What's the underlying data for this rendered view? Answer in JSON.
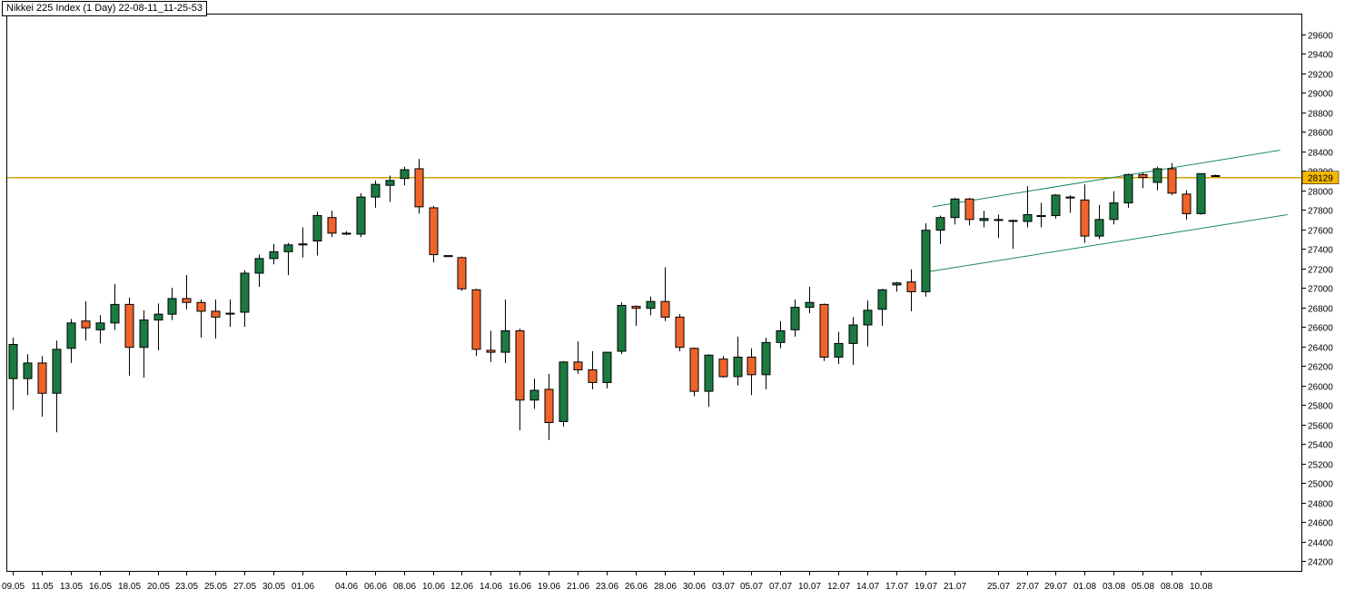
{
  "window": {
    "title": "Nikkei 225 Index (1 Day) 22-08-11_11-25-53"
  },
  "colors": {
    "up": "#1a7a40",
    "down": "#f0642a",
    "outline": "#000000",
    "horizontal_line": "#d4a000",
    "channel": "#1a8a5a",
    "price_label_bg": "#f5b800"
  },
  "chart_data": {
    "type": "candlestick",
    "title": "Nikkei 225 Index (1 Day)",
    "ylim": [
      24100,
      29800
    ],
    "y_ticks": [
      24200,
      24400,
      24600,
      24800,
      25000,
      25200,
      25400,
      25600,
      25800,
      26000,
      26200,
      26400,
      26600,
      26800,
      27000,
      27200,
      27400,
      27600,
      27800,
      28000,
      28200,
      28400,
      28600,
      28800,
      29000,
      29200,
      29400,
      29600
    ],
    "x_ticks": [
      {
        "i": 0,
        "label": "09.05"
      },
      {
        "i": 2,
        "label": "11.05"
      },
      {
        "i": 4,
        "label": "13.05"
      },
      {
        "i": 6,
        "label": "16.05"
      },
      {
        "i": 8,
        "label": "18.05"
      },
      {
        "i": 10,
        "label": "20.05"
      },
      {
        "i": 12,
        "label": "23.05"
      },
      {
        "i": 14,
        "label": "25.05"
      },
      {
        "i": 16,
        "label": "27.05"
      },
      {
        "i": 18,
        "label": "30.05"
      },
      {
        "i": 20,
        "label": "01.06"
      },
      {
        "i": 23,
        "label": "04.06"
      },
      {
        "i": 25,
        "label": "06.06"
      },
      {
        "i": 27,
        "label": "08.06"
      },
      {
        "i": 29,
        "label": "10.06"
      },
      {
        "i": 31,
        "label": "12.06"
      },
      {
        "i": 33,
        "label": "14.06"
      },
      {
        "i": 35,
        "label": "16.06"
      },
      {
        "i": 37,
        "label": "19.06"
      },
      {
        "i": 39,
        "label": "21.06"
      },
      {
        "i": 41,
        "label": "23.06"
      },
      {
        "i": 43,
        "label": "26.06"
      },
      {
        "i": 45,
        "label": "28.06"
      },
      {
        "i": 47,
        "label": "30.06"
      },
      {
        "i": 49,
        "label": "03.07"
      },
      {
        "i": 51,
        "label": "05.07"
      },
      {
        "i": 53,
        "label": "07.07"
      },
      {
        "i": 55,
        "label": "10.07"
      },
      {
        "i": 57,
        "label": "12.07"
      },
      {
        "i": 59,
        "label": "14.07"
      },
      {
        "i": 61,
        "label": "17.07"
      },
      {
        "i": 63,
        "label": "19.07"
      },
      {
        "i": 65,
        "label": "21.07"
      },
      {
        "i": 68,
        "label": "25.07"
      },
      {
        "i": 70,
        "label": "27.07"
      },
      {
        "i": 72,
        "label": "29.07"
      },
      {
        "i": 74,
        "label": "01.08"
      },
      {
        "i": 76,
        "label": "03.08"
      },
      {
        "i": 78,
        "label": "05.08"
      },
      {
        "i": 80,
        "label": "08.08"
      },
      {
        "i": 82,
        "label": "10.08"
      }
    ],
    "candles": [
      {
        "o": 26070,
        "h": 26490,
        "l": 25750,
        "c": 26420
      },
      {
        "o": 26070,
        "h": 26320,
        "l": 25900,
        "c": 26230
      },
      {
        "o": 26230,
        "h": 26300,
        "l": 25680,
        "c": 25920
      },
      {
        "o": 25920,
        "h": 26460,
        "l": 25520,
        "c": 26370
      },
      {
        "o": 26380,
        "h": 26680,
        "l": 26230,
        "c": 26640
      },
      {
        "o": 26660,
        "h": 26860,
        "l": 26460,
        "c": 26590
      },
      {
        "o": 26570,
        "h": 26720,
        "l": 26430,
        "c": 26640
      },
      {
        "o": 26640,
        "h": 27040,
        "l": 26570,
        "c": 26830
      },
      {
        "o": 26830,
        "h": 26900,
        "l": 26100,
        "c": 26390
      },
      {
        "o": 26390,
        "h": 26770,
        "l": 26080,
        "c": 26670
      },
      {
        "o": 26670,
        "h": 26840,
        "l": 26360,
        "c": 26730
      },
      {
        "o": 26730,
        "h": 27000,
        "l": 26670,
        "c": 26890
      },
      {
        "o": 26890,
        "h": 27130,
        "l": 26780,
        "c": 26850
      },
      {
        "o": 26850,
        "h": 26880,
        "l": 26490,
        "c": 26760
      },
      {
        "o": 26760,
        "h": 26880,
        "l": 26480,
        "c": 26700
      },
      {
        "o": 26740,
        "h": 26880,
        "l": 26600,
        "c": 26740
      },
      {
        "o": 26750,
        "h": 27180,
        "l": 26600,
        "c": 27150
      },
      {
        "o": 27150,
        "h": 27340,
        "l": 27010,
        "c": 27300
      },
      {
        "o": 27300,
        "h": 27450,
        "l": 27240,
        "c": 27370
      },
      {
        "o": 27370,
        "h": 27460,
        "l": 27130,
        "c": 27440
      },
      {
        "o": 27450,
        "h": 27620,
        "l": 27310,
        "c": 27440
      },
      {
        "o": 27480,
        "h": 27780,
        "l": 27330,
        "c": 27740
      },
      {
        "o": 27720,
        "h": 27790,
        "l": 27520,
        "c": 27560
      },
      {
        "o": 27560,
        "h": 27580,
        "l": 27540,
        "c": 27550
      },
      {
        "o": 27550,
        "h": 27970,
        "l": 27520,
        "c": 27930
      },
      {
        "o": 27930,
        "h": 28100,
        "l": 27820,
        "c": 28060
      },
      {
        "o": 28050,
        "h": 28150,
        "l": 27880,
        "c": 28100
      },
      {
        "o": 28120,
        "h": 28240,
        "l": 28050,
        "c": 28210
      },
      {
        "o": 28220,
        "h": 28320,
        "l": 27760,
        "c": 27830
      },
      {
        "o": 27820,
        "h": 27840,
        "l": 27260,
        "c": 27340
      },
      {
        "o": 27330,
        "h": 27330,
        "l": 27320,
        "c": 27320
      },
      {
        "o": 27310,
        "h": 27320,
        "l": 26970,
        "c": 26990
      },
      {
        "o": 26980,
        "h": 26990,
        "l": 26300,
        "c": 26370
      },
      {
        "o": 26360,
        "h": 26560,
        "l": 26240,
        "c": 26340
      },
      {
        "o": 26340,
        "h": 26880,
        "l": 26230,
        "c": 26560
      },
      {
        "o": 26560,
        "h": 26580,
        "l": 25540,
        "c": 25850
      },
      {
        "o": 25850,
        "h": 26070,
        "l": 25760,
        "c": 25950
      },
      {
        "o": 25960,
        "h": 26120,
        "l": 25440,
        "c": 25620
      },
      {
        "o": 25630,
        "h": 26250,
        "l": 25580,
        "c": 26240
      },
      {
        "o": 26240,
        "h": 26450,
        "l": 26120,
        "c": 26160
      },
      {
        "o": 26160,
        "h": 26350,
        "l": 25960,
        "c": 26030
      },
      {
        "o": 26030,
        "h": 26340,
        "l": 25970,
        "c": 26340
      },
      {
        "o": 26350,
        "h": 26850,
        "l": 26320,
        "c": 26820
      },
      {
        "o": 26810,
        "h": 26820,
        "l": 26610,
        "c": 26790
      },
      {
        "o": 26790,
        "h": 26910,
        "l": 26720,
        "c": 26860
      },
      {
        "o": 26860,
        "h": 27210,
        "l": 26660,
        "c": 26700
      },
      {
        "o": 26700,
        "h": 26730,
        "l": 26350,
        "c": 26390
      },
      {
        "o": 26380,
        "h": 26390,
        "l": 25890,
        "c": 25940
      },
      {
        "o": 25940,
        "h": 26320,
        "l": 25780,
        "c": 26310
      },
      {
        "o": 26270,
        "h": 26300,
        "l": 26080,
        "c": 26090
      },
      {
        "o": 26090,
        "h": 26500,
        "l": 26000,
        "c": 26290
      },
      {
        "o": 26290,
        "h": 26380,
        "l": 25900,
        "c": 26110
      },
      {
        "o": 26110,
        "h": 26490,
        "l": 25960,
        "c": 26440
      },
      {
        "o": 26440,
        "h": 26660,
        "l": 26380,
        "c": 26560
      },
      {
        "o": 26570,
        "h": 26880,
        "l": 26500,
        "c": 26800
      },
      {
        "o": 26800,
        "h": 27010,
        "l": 26740,
        "c": 26850
      },
      {
        "o": 26830,
        "h": 26840,
        "l": 26250,
        "c": 26290
      },
      {
        "o": 26290,
        "h": 26550,
        "l": 26220,
        "c": 26430
      },
      {
        "o": 26430,
        "h": 26700,
        "l": 26210,
        "c": 26620
      },
      {
        "o": 26620,
        "h": 26870,
        "l": 26400,
        "c": 26770
      },
      {
        "o": 26780,
        "h": 26990,
        "l": 26610,
        "c": 26980
      },
      {
        "o": 27030,
        "h": 27060,
        "l": 26960,
        "c": 27050
      },
      {
        "o": 27060,
        "h": 27190,
        "l": 26760,
        "c": 26960
      },
      {
        "o": 26960,
        "h": 27660,
        "l": 26910,
        "c": 27590
      },
      {
        "o": 27590,
        "h": 27740,
        "l": 27450,
        "c": 27720
      },
      {
        "o": 27720,
        "h": 27920,
        "l": 27650,
        "c": 27910
      },
      {
        "o": 27910,
        "h": 27920,
        "l": 27640,
        "c": 27700
      },
      {
        "o": 27690,
        "h": 27790,
        "l": 27620,
        "c": 27710
      },
      {
        "o": 27700,
        "h": 27750,
        "l": 27510,
        "c": 27690
      },
      {
        "o": 27690,
        "h": 27700,
        "l": 27400,
        "c": 27690
      },
      {
        "o": 27680,
        "h": 28040,
        "l": 27620,
        "c": 27750
      },
      {
        "o": 27740,
        "h": 27870,
        "l": 27620,
        "c": 27740
      },
      {
        "o": 27740,
        "h": 27960,
        "l": 27710,
        "c": 27950
      },
      {
        "o": 27930,
        "h": 27950,
        "l": 27770,
        "c": 27920
      },
      {
        "o": 27900,
        "h": 28060,
        "l": 27460,
        "c": 27530
      },
      {
        "o": 27530,
        "h": 27850,
        "l": 27500,
        "c": 27700
      },
      {
        "o": 27700,
        "h": 27990,
        "l": 27650,
        "c": 27870
      },
      {
        "o": 27870,
        "h": 28170,
        "l": 27820,
        "c": 28160
      },
      {
        "o": 28160,
        "h": 28180,
        "l": 28020,
        "c": 28130
      },
      {
        "o": 28080,
        "h": 28240,
        "l": 28000,
        "c": 28220
      },
      {
        "o": 28220,
        "h": 28280,
        "l": 27950,
        "c": 27970
      },
      {
        "o": 27960,
        "h": 28000,
        "l": 27700,
        "c": 27760
      },
      {
        "o": 27760,
        "h": 28170,
        "l": 27750,
        "c": 28170
      },
      {
        "o": 28150,
        "h": 28160,
        "l": 28140,
        "c": 28150
      }
    ],
    "horizontal_line": {
      "value": 28129,
      "label": "28129"
    },
    "channel": [
      {
        "from": {
          "i": 63.5,
          "price": 27830
        },
        "to": {
          "i": 87.5,
          "price": 28410
        }
      },
      {
        "from": {
          "i": 63,
          "price": 27160
        },
        "to": {
          "i": 88,
          "price": 27750
        }
      }
    ]
  }
}
